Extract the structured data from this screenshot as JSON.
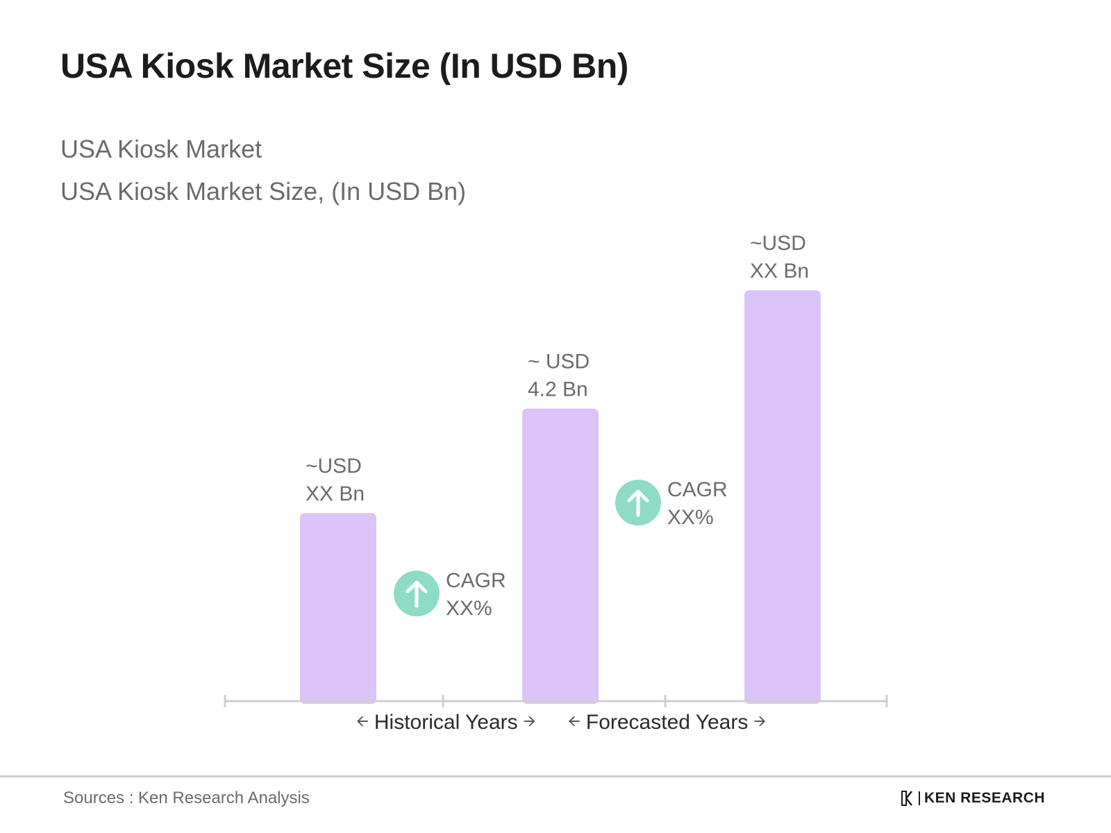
{
  "title": "USA Kiosk Market Size (In USD Bn)",
  "subtitle_1": "USA Kiosk Market",
  "subtitle_2": "USA Kiosk Market Size, (In USD Bn)",
  "colors": {
    "bar": "#dcc3f7",
    "cagr_circle": "#8edcc6",
    "axis": "#cfcfcf"
  },
  "chart_data": {
    "type": "bar",
    "categories": [
      "",
      "",
      ""
    ],
    "values": [
      2.7,
      4.2,
      5.9
    ],
    "data_labels": [
      [
        "~USD",
        "XX Bn"
      ],
      [
        "~ USD",
        "4.2 Bn"
      ],
      [
        "~USD",
        "XX Bn"
      ]
    ],
    "ylim": [
      0,
      6.2
    ],
    "grid": false,
    "annotations": [
      {
        "type": "cagr",
        "between": [
          0,
          1
        ],
        "icon": "arrow-up-icon",
        "lines": [
          "CAGR",
          "XX%"
        ]
      },
      {
        "type": "cagr",
        "between": [
          1,
          2
        ],
        "icon": "arrow-up-icon",
        "lines": [
          "CAGR",
          "XX%"
        ]
      }
    ],
    "periods": [
      {
        "label": "Historical Years"
      },
      {
        "label": "Forecasted Years"
      }
    ]
  },
  "footer": {
    "source": "Sources : Ken Research Analysis",
    "brand": "KEN RESEARCH",
    "brand_icon": "ken-research-logo-icon"
  }
}
